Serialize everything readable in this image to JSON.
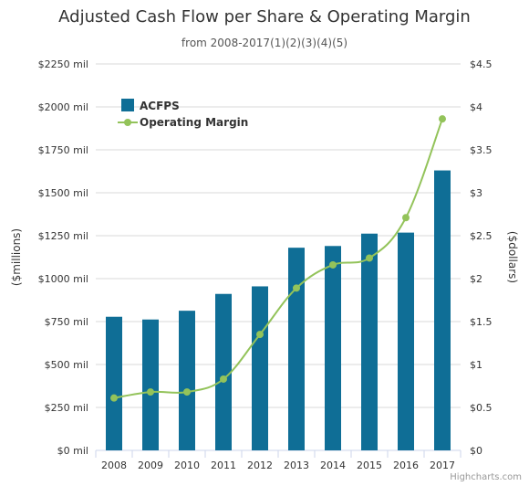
{
  "chart_data": {
    "type": "bar",
    "title": "Adjusted Cash Flow per Share & Operating Margin",
    "subtitle": "from 2008-2017(1)(2)(3)(4)(5)",
    "categories": [
      "2008",
      "2009",
      "2010",
      "2011",
      "2012",
      "2013",
      "2014",
      "2015",
      "2016",
      "2017"
    ],
    "series": [
      {
        "name": "ACFPS",
        "type": "bar",
        "axis": "left",
        "color": "#0f6e96",
        "values": [
          778,
          762,
          813,
          911,
          955,
          1180,
          1190,
          1262,
          1268,
          1630
        ]
      },
      {
        "name": "Operating Margin",
        "type": "line",
        "axis": "right",
        "color": "#93c35a",
        "values": [
          0.61,
          0.68,
          0.68,
          0.83,
          1.35,
          1.89,
          2.16,
          2.24,
          2.71,
          3.86
        ]
      }
    ],
    "y_left": {
      "label": "($millions)",
      "min": 0,
      "max": 2250,
      "ticks": [
        "$0 mil",
        "$250 mil",
        "$500 mil",
        "$750 mil",
        "$1000 mil",
        "$1250 mil",
        "$1500 mil",
        "$1750 mil",
        "$2000 mil",
        "$2250 mil"
      ]
    },
    "y_right": {
      "label": "($dollars)",
      "min": 0,
      "max": 4.5,
      "ticks": [
        "$0",
        "$0.5",
        "$1",
        "$1.5",
        "$2",
        "$2.5",
        "$3",
        "$3.5",
        "$4",
        "$4.5"
      ]
    },
    "legend_position": "top-left",
    "grid": true
  },
  "credits": "Highcharts.com"
}
